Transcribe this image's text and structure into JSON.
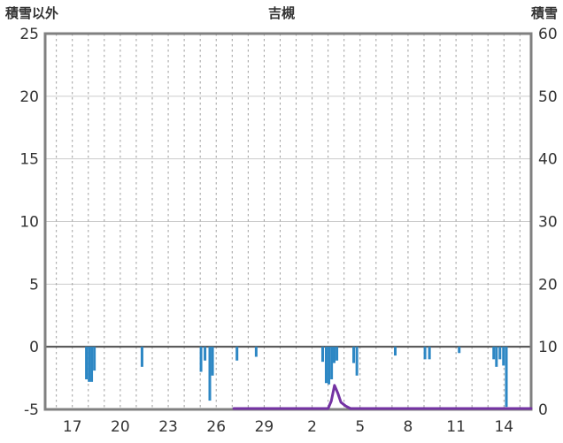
{
  "chart_data": {
    "type": "bar",
    "title": "吉槻",
    "left_axis": {
      "label": "積雪以外",
      "min": -5,
      "max": 25,
      "ticks": [
        -5,
        0,
        5,
        10,
        15,
        20,
        25
      ]
    },
    "right_axis": {
      "label": "積雪",
      "min": 0,
      "max": 60,
      "ticks": [
        0,
        10,
        20,
        30,
        40,
        50,
        60
      ]
    },
    "x_axis": {
      "min": 15.3,
      "max": 45.7,
      "grid_interval_days": 1,
      "tick_days": [
        17,
        20,
        23,
        26,
        29,
        32,
        35,
        38,
        41,
        44
      ],
      "tick_labels": [
        "17",
        "20",
        "23",
        "26",
        "29",
        "2",
        "5",
        "8",
        "11",
        "14"
      ]
    },
    "colors": {
      "border": "#808080",
      "grid": "#cccccc",
      "grid_dashed": "#9e9e9e",
      "zero_line": "#4d4d4d",
      "bar": "#2d87c4",
      "snow": "#7433a3"
    },
    "series": [
      {
        "name": "積雪以外",
        "type": "bar",
        "axis": "left",
        "color": "#2d87c4",
        "points": [
          [
            17.88,
            -2.6
          ],
          [
            18.05,
            -2.8
          ],
          [
            18.21,
            -2.8
          ],
          [
            18.38,
            -1.9
          ],
          [
            21.36,
            -1.6
          ],
          [
            25.05,
            -2.0
          ],
          [
            25.3,
            -1.1
          ],
          [
            25.6,
            -4.3
          ],
          [
            25.77,
            -2.3
          ],
          [
            27.3,
            -1.1
          ],
          [
            28.5,
            -0.8
          ],
          [
            32.66,
            -1.2
          ],
          [
            32.88,
            -2.9
          ],
          [
            33.05,
            -3.0
          ],
          [
            33.22,
            -2.6
          ],
          [
            33.38,
            -1.3
          ],
          [
            33.55,
            -1.1
          ],
          [
            34.6,
            -1.3
          ],
          [
            34.8,
            -2.3
          ],
          [
            37.2,
            -0.7
          ],
          [
            39.06,
            -1.0
          ],
          [
            39.34,
            -1.0
          ],
          [
            41.2,
            -0.5
          ],
          [
            43.36,
            -1.0
          ],
          [
            43.53,
            -1.6
          ],
          [
            43.75,
            -1.0
          ],
          [
            43.97,
            -1.5
          ],
          [
            44.15,
            -4.8
          ]
        ]
      },
      {
        "name": "積雪",
        "type": "line",
        "axis": "right",
        "color": "#7433a3",
        "points": [
          [
            27.1,
            0
          ],
          [
            33.0,
            0
          ],
          [
            33.2,
            1.2
          ],
          [
            33.4,
            3.7
          ],
          [
            33.6,
            2.5
          ],
          [
            33.8,
            1.0
          ],
          [
            34.1,
            0.4
          ],
          [
            34.4,
            0
          ],
          [
            45.7,
            0
          ]
        ]
      }
    ],
    "legend": "none",
    "grid": "on"
  }
}
